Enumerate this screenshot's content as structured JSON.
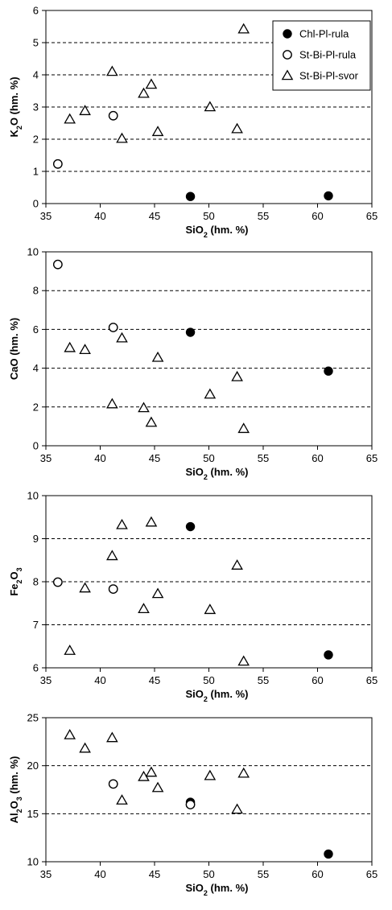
{
  "chart_data": [
    {
      "type": "scatter",
      "xlabel": {
        "main": "SiO",
        "sub": "2",
        "suffix": " (hm. %)"
      },
      "ylabel": {
        "main": "K",
        "sub": "2",
        "suffix": "O (hm. %)"
      },
      "xlim": [
        35,
        65
      ],
      "ylim": [
        0,
        6
      ],
      "xticks": [
        "35",
        "40",
        "45",
        "50",
        "55",
        "60",
        "65"
      ],
      "yticks": [
        "0",
        "1",
        "2",
        "3",
        "4",
        "5",
        "6"
      ],
      "grid": "horizontal-dashed",
      "legend": {
        "placement": "top-right",
        "entries": [
          {
            "label": "Chl-Pl-rula",
            "marker": "filled-circle"
          },
          {
            "label": "St-Bi-Pl-rula",
            "marker": "open-circle"
          },
          {
            "label": "St-Bi-Pl-svor",
            "marker": "open-triangle"
          }
        ]
      },
      "series": [
        {
          "name": "Chl-Pl-rula",
          "marker": "filled-circle",
          "points": [
            [
              48.3,
              0.22
            ],
            [
              61.0,
              0.24
            ]
          ]
        },
        {
          "name": "St-Bi-Pl-rula",
          "marker": "open-circle",
          "points": [
            [
              36.1,
              1.23
            ],
            [
              41.2,
              2.73
            ]
          ]
        },
        {
          "name": "St-Bi-Pl-svor",
          "marker": "open-triangle",
          "points": [
            [
              37.2,
              2.62
            ],
            [
              38.6,
              2.88
            ],
            [
              41.1,
              4.1
            ],
            [
              42.0,
              2.02
            ],
            [
              44.0,
              3.42
            ],
            [
              44.7,
              3.7
            ],
            [
              45.3,
              2.23
            ],
            [
              50.1,
              3.0
            ],
            [
              52.6,
              2.32
            ],
            [
              53.2,
              5.42
            ]
          ]
        }
      ]
    },
    {
      "type": "scatter",
      "xlabel": {
        "main": "SiO",
        "sub": "2",
        "suffix": " (hm. %)"
      },
      "ylabel": {
        "main": "CaO (hm. %)",
        "sub": "",
        "suffix": ""
      },
      "xlim": [
        35,
        65
      ],
      "ylim": [
        0,
        10
      ],
      "xticks": [
        "35",
        "40",
        "45",
        "50",
        "55",
        "60",
        "65"
      ],
      "yticks": [
        "0",
        "2",
        "4",
        "6",
        "8",
        "10"
      ],
      "grid": "horizontal-dashed",
      "series": [
        {
          "name": "Chl-Pl-rula",
          "marker": "filled-circle",
          "points": [
            [
              48.3,
              5.85
            ],
            [
              61.0,
              3.85
            ]
          ]
        },
        {
          "name": "St-Bi-Pl-rula",
          "marker": "open-circle",
          "points": [
            [
              36.1,
              9.35
            ],
            [
              41.2,
              6.1
            ]
          ]
        },
        {
          "name": "St-Bi-Pl-svor",
          "marker": "open-triangle",
          "points": [
            [
              37.2,
              5.05
            ],
            [
              38.6,
              4.95
            ],
            [
              41.1,
              2.15
            ],
            [
              42.0,
              5.55
            ],
            [
              44.0,
              1.95
            ],
            [
              44.7,
              1.2
            ],
            [
              45.3,
              4.55
            ],
            [
              50.1,
              2.65
            ],
            [
              52.6,
              3.55
            ],
            [
              53.2,
              0.88
            ]
          ]
        }
      ]
    },
    {
      "type": "scatter",
      "xlabel": {
        "main": "SiO",
        "sub": "2",
        "suffix": " (hm. %)"
      },
      "ylabel": {
        "main": "Fe",
        "sub": "2",
        "suffix": "O",
        "sub2": "3"
      },
      "xlim": [
        35,
        65
      ],
      "ylim": [
        6,
        10
      ],
      "xticks": [
        "35",
        "40",
        "45",
        "50",
        "55",
        "60",
        "65"
      ],
      "yticks": [
        "6",
        "7",
        "8",
        "9",
        "10"
      ],
      "grid": "horizontal-dashed",
      "series": [
        {
          "name": "Chl-Pl-rula",
          "marker": "filled-circle",
          "points": [
            [
              48.3,
              9.28
            ],
            [
              61.0,
              6.3
            ]
          ]
        },
        {
          "name": "St-Bi-Pl-rula",
          "marker": "open-circle",
          "points": [
            [
              36.1,
              7.99
            ],
            [
              41.2,
              7.83
            ]
          ]
        },
        {
          "name": "St-Bi-Pl-svor",
          "marker": "open-triangle",
          "points": [
            [
              37.2,
              6.4
            ],
            [
              38.6,
              7.85
            ],
            [
              41.1,
              8.6
            ],
            [
              42.0,
              9.32
            ],
            [
              44.0,
              7.37
            ],
            [
              44.7,
              9.38
            ],
            [
              45.3,
              7.72
            ],
            [
              50.1,
              7.35
            ],
            [
              52.6,
              8.38
            ],
            [
              53.2,
              6.15
            ]
          ]
        }
      ]
    },
    {
      "type": "scatter",
      "xlabel": {
        "main": "SiO",
        "sub": "2",
        "suffix": " (hm. %)"
      },
      "ylabel": {
        "main": "Al",
        "sub": "2",
        "suffix": "O",
        "sub2": "3",
        "suffix2": " (hm. %)"
      },
      "xlim": [
        35,
        65
      ],
      "ylim": [
        10,
        25
      ],
      "xticks": [
        "35",
        "40",
        "45",
        "50",
        "55",
        "60",
        "65"
      ],
      "yticks": [
        "10",
        "15",
        "20",
        "25"
      ],
      "grid": "horizontal-dashed",
      "series": [
        {
          "name": "Chl-Pl-rula",
          "marker": "filled-circle",
          "points": [
            [
              48.3,
              16.2
            ],
            [
              61.0,
              10.8
            ]
          ]
        },
        {
          "name": "St-Bi-Pl-rula",
          "marker": "open-circle",
          "points": [
            [
              41.2,
              18.1
            ],
            [
              48.3,
              15.95
            ]
          ]
        },
        {
          "name": "St-Bi-Pl-svor",
          "marker": "open-triangle",
          "points": [
            [
              37.2,
              23.2
            ],
            [
              38.6,
              21.8
            ],
            [
              41.1,
              22.9
            ],
            [
              42.0,
              16.4
            ],
            [
              44.0,
              18.85
            ],
            [
              44.7,
              19.3
            ],
            [
              45.3,
              17.7
            ],
            [
              50.1,
              18.95
            ],
            [
              52.6,
              15.45
            ],
            [
              53.2,
              19.2
            ]
          ]
        }
      ]
    }
  ]
}
